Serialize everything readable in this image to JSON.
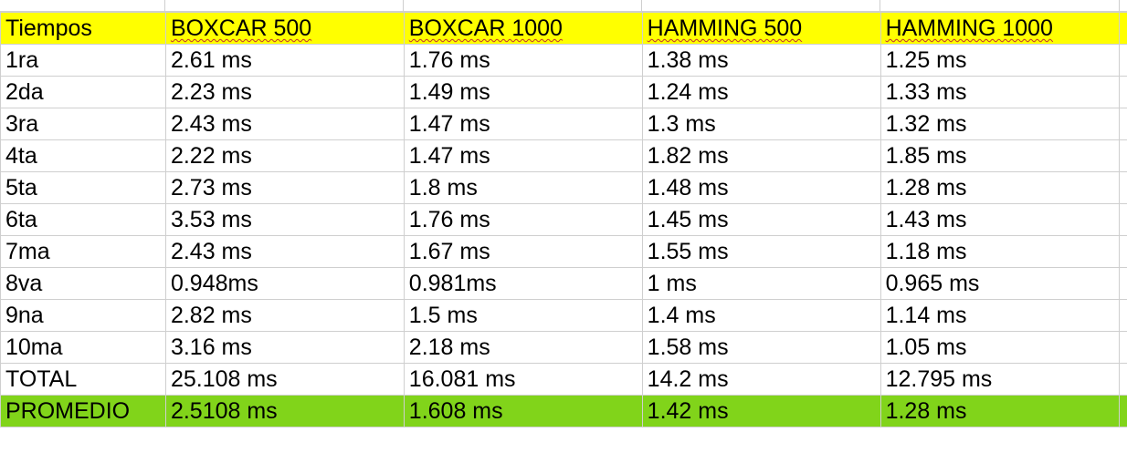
{
  "sheet": {
    "highlight_colors": {
      "header": "#ffff00",
      "average": "#81d41a",
      "spellcheck": "#c03030"
    },
    "header": [
      "Tiempos",
      "BOXCAR 500",
      "BOXCAR 1000",
      "HAMMING 500",
      "HAMMING 1000"
    ],
    "rows": [
      [
        "1ra",
        "2.61 ms",
        "1.76 ms",
        "1.38 ms",
        "1.25 ms"
      ],
      [
        "2da",
        "2.23 ms",
        "1.49 ms",
        "1.24 ms",
        "1.33 ms"
      ],
      [
        "3ra",
        "2.43 ms",
        "1.47 ms",
        "1.3 ms",
        "1.32 ms"
      ],
      [
        "4ta",
        "2.22 ms",
        "1.47 ms",
        "1.82 ms",
        "1.85 ms"
      ],
      [
        "5ta",
        "2.73 ms",
        "1.8 ms",
        "1.48 ms",
        "1.28 ms"
      ],
      [
        "6ta",
        "3.53 ms",
        "1.76 ms",
        "1.45 ms",
        "1.43 ms"
      ],
      [
        "7ma",
        "2.43 ms",
        "1.67 ms",
        "1.55 ms",
        "1.18 ms"
      ],
      [
        "8va",
        "0.948ms",
        "0.981ms",
        "1 ms",
        "0.965 ms"
      ],
      [
        "9na",
        "2.82 ms",
        "1.5 ms",
        "1.4 ms",
        "1.14 ms"
      ],
      [
        "10ma",
        "3.16 ms",
        "2.18 ms",
        "1.58 ms",
        "1.05 ms"
      ]
    ],
    "total": [
      "TOTAL",
      "25.108 ms",
      "16.081 ms",
      "14.2 ms",
      "12.795 ms"
    ],
    "average": [
      "PROMEDIO",
      "2.5108 ms",
      "1.608 ms",
      "1.42 ms",
      "1.28 ms"
    ]
  }
}
